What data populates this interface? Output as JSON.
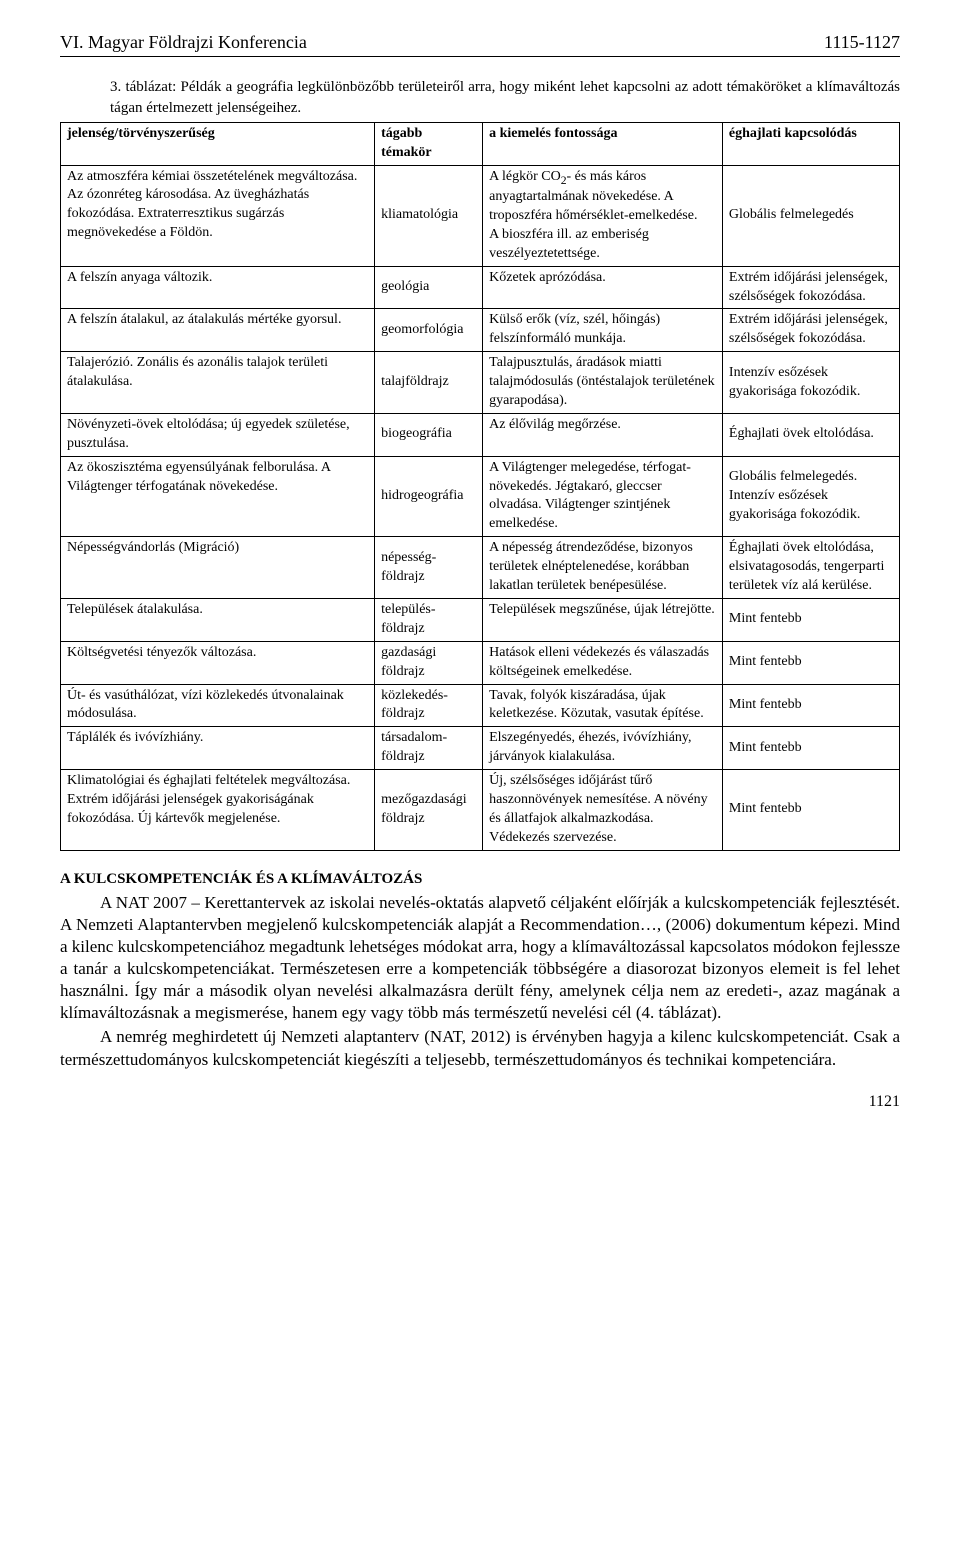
{
  "header": {
    "left": "VI. Magyar Földrajzi Konferencia",
    "right": "1115-1127"
  },
  "caption": "3. táblázat: Példák a geográfia legkülönbözőbb területeiről arra, hogy miként lehet kapcsolni az adott témaköröket a klímaváltozás tágan értelmezett jelenségeihez.",
  "table": {
    "headers": [
      "jelenség/törvényszerűség",
      "tágabb témakör",
      "a kiemelés fontossága",
      "éghajlati kapcsolódás"
    ],
    "rows": [
      {
        "c0": "Az atmoszféra kémiai összetételének megváltozása. Az ózonréteg károsodása. Az üvegházhatás fokozódása. Extraterresztikus sugárzás megnövekedése a Földön.",
        "c1": "kliamatológia",
        "c2_html": "A légkör CO<sub>2</sub>- és más káros anyagtartalmának növekedése. A troposzféra hőmérséklet-emelkedése.<br>A bioszféra ill. az emberiség veszélyeztetettsége.",
        "c3": "Globális felmelegedés"
      },
      {
        "c0": "A felszín anyaga változik.",
        "c1": "geológia",
        "c2": "Kőzetek aprózódása.",
        "c3": "Extrém időjárási jelenségek, szélsőségek fokozódása."
      },
      {
        "c0": "A felszín átalakul, az átalakulás mértéke gyorsul.",
        "c1": "geomorfológia",
        "c2": "Külső erők (víz, szél, hőingás) felszínformáló munkája.",
        "c3": "Extrém időjárási jelenségek, szélsőségek fokozódása."
      },
      {
        "c0": "Talajerózió. Zonális és azonális talajok területi átalakulása.",
        "c1": "talajföldrajz",
        "c2": "Talajpusztulás, áradások miatti talajmódosulás (öntéstalajok területének gyarapodása).",
        "c3": "Intenzív esőzések gyakorisága fokozódik."
      },
      {
        "c0": "Növényzeti-övek eltolódása; új egyedek születése, pusztulása.",
        "c1": "biogeográfia",
        "c2": "Az élővilág megőrzése.",
        "c3": "Éghajlati övek eltolódása."
      },
      {
        "c0": "Az ökoszisztéma egyensúlyának felborulása. A Világtenger térfogatának növekedése.",
        "c1": "hidrogeográfia",
        "c2": "A Világtenger melegedése, térfogat-növekedés. Jégtakaró, gleccser olvadása. Világtenger szintjének emelkedése.",
        "c3": "Globális felmelegedés. Intenzív esőzések gyakorisága fokozódik."
      },
      {
        "c0": "Népességvándorlás (Migráció)",
        "c1": "népesség-földrajz",
        "c2": "A népesség átrendeződése, bizonyos területek elnéptelenedése, korábban lakatlan területek  benépesülése.",
        "c3": "Éghajlati övek eltolódása, elsivatagosodás, tengerparti területek víz alá kerülése."
      },
      {
        "c0": "Települések átalakulása.",
        "c1": "település-földrajz",
        "c2": "Települések megszűnése, újak létrejötte.",
        "c3": "Mint fentebb"
      },
      {
        "c0": "Költségvetési tényezők változása.",
        "c1": "gazdasági földrajz",
        "c2": "Hatások elleni védekezés és válaszadás költségeinek emelkedése.",
        "c3": "Mint fentebb"
      },
      {
        "c0": "Út- és vasúthálózat, vízi közlekedés útvonalainak módosulása.",
        "c1": "közlekedés-földrajz",
        "c2": "Tavak, folyók kiszáradása, újak keletkezése. Közutak, vasutak építése.",
        "c3": "Mint fentebb"
      },
      {
        "c0": "Táplálék és ivóvízhiány.",
        "c1": "társadalom-földrajz",
        "c2": "Elszegényedés, éhezés, ivóvízhiány, járványok kialakulása.",
        "c3": "Mint fentebb"
      },
      {
        "c0": "Klimatológiai és éghajlati feltételek megváltozása. Extrém időjárási jelenségek gyakoriságának fokozódása. Új kártevők megjelenése.",
        "c1": "mezőgazdasági földrajz",
        "c2": "Új, szélsőséges időjárást tűrő haszonnövények nemesítése. A növény és állatfajok alkalmazkodása. Védekezés szervezése.",
        "c3": "Mint fentebb"
      }
    ]
  },
  "section": {
    "heading": "A KULCSKOMPETENCIÁK ÉS A KLÍMAVÁLTOZÁS",
    "p1": "A NAT 2007 – Kerettantervek az iskolai nevelés-oktatás alapvető céljaként előírják a kulcskompetenciák fejlesztését. A Nemzeti Alaptantervben megjelenő kulcskompetenciák alapját a Recommendation…, (2006) dokumentum képezi. Mind a kilenc kulcskompetenciához megadtunk lehetséges módokat arra, hogy a klímaváltozással kapcsolatos módokon fejlessze a tanár a kulcskompetenciákat. Természetesen erre a kompetenciák többségére a diasorozat bizonyos elemeit is fel lehet használni. Így már a második olyan nevelési alkalmazásra derült fény, amelynek célja nem az eredeti-, azaz magának a klímaváltozásnak a megismerése, hanem egy vagy több más természetű nevelési cél (4. táblázat).",
    "p2": "A nemrég meghirdetett új Nemzeti alaptanterv (NAT, 2012) is érvényben hagyja a kilenc kulcskompetenciát. Csak a természettudományos kulcskompetenciát kiegészíti a teljesebb, természettudományos és technikai kompetenciára."
  },
  "pageNum": "1121"
}
